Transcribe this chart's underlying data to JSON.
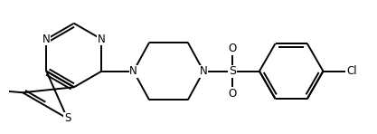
{
  "lw": 1.4,
  "fs": 8.5,
  "figsize": [
    4.17,
    1.48
  ],
  "dpi": 100,
  "xlim": [
    -0.05,
    4.22
  ],
  "ylim": [
    -0.05,
    1.53
  ],
  "bg": "#ffffff"
}
